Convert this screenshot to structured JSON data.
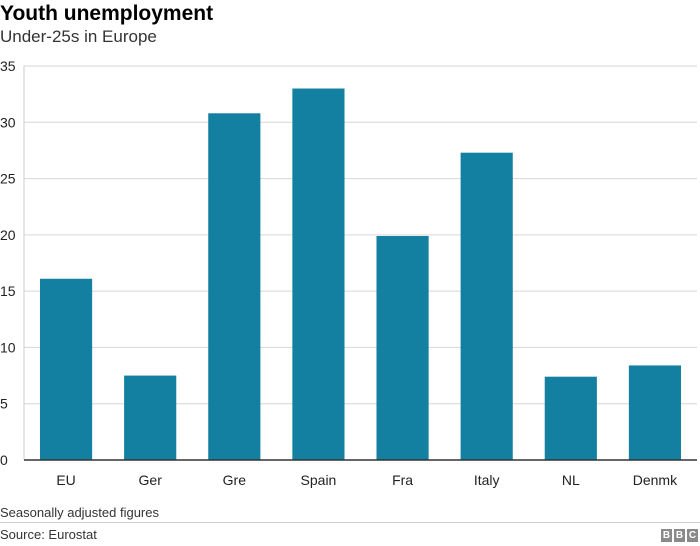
{
  "chart_data": {
    "type": "bar",
    "title": "Youth unemployment",
    "subtitle": "Under-25s in Europe",
    "categories": [
      "EU",
      "Ger",
      "Gre",
      "Spain",
      "Fra",
      "Italy",
      "NL",
      "Denmk"
    ],
    "values": [
      16.1,
      7.5,
      30.8,
      33.0,
      19.9,
      27.3,
      7.4,
      8.4
    ],
    "ylim": [
      0,
      35
    ],
    "yticks": [
      0,
      5,
      10,
      15,
      20,
      25,
      30,
      35
    ],
    "grid": true,
    "legend": "none",
    "bar_color": "#1380a1",
    "note": "Seasonally adjusted figures",
    "source": "Source: Eurostat"
  },
  "branding": {
    "logo_letters": [
      "B",
      "B",
      "C"
    ]
  }
}
